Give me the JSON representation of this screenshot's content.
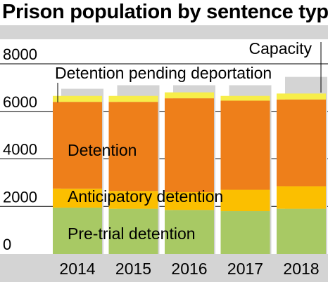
{
  "title": "Prison population by sentence type",
  "colors": {
    "pretrial": "#a8c964",
    "anticipatory": "#fbbf00",
    "detention": "#ee7f1a",
    "deportation": "#f7ee4a",
    "capacity": "#d4d4d4",
    "band": "#d4d4d4",
    "gridline": "#000000"
  },
  "chart_data": {
    "type": "bar",
    "stacked": true,
    "title": "Prison population by sentence type",
    "categories": [
      "2014",
      "2015",
      "2016",
      "2017",
      "2018"
    ],
    "ylim": [
      0,
      8000
    ],
    "yticks": [
      "0",
      "2000",
      "4000",
      "6000",
      "8000"
    ],
    "grid": true,
    "series": [
      {
        "name": "Pre-trial detention",
        "key": "pretrial",
        "values": [
          1950,
          1900,
          1850,
          1800,
          1900
        ]
      },
      {
        "name": "Anticipatory detention",
        "key": "anticipatory",
        "values": [
          800,
          750,
          750,
          900,
          950
        ]
      },
      {
        "name": "Detention",
        "key": "detention",
        "values": [
          3650,
          3750,
          3950,
          3750,
          3650
        ]
      },
      {
        "name": "Detention pending deportation",
        "key": "deportation",
        "values": [
          250,
          250,
          250,
          200,
          250
        ]
      }
    ],
    "capacity": {
      "name": "Capacity",
      "values": [
        6950,
        7100,
        7100,
        7100,
        7450
      ]
    }
  }
}
